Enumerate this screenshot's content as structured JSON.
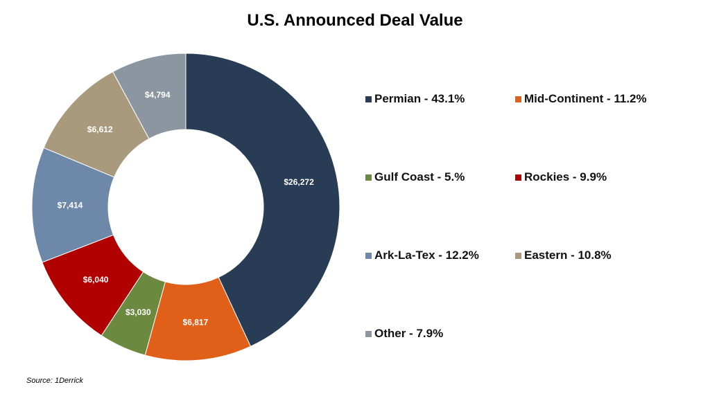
{
  "chart_data": {
    "type": "pie",
    "subtype": "donut",
    "title": "U.S. Announced Deal Value",
    "categories": [
      "Permian",
      "Mid-Continent",
      "Gulf Coast",
      "Rockies",
      "Ark-La-Tex",
      "Eastern",
      "Other"
    ],
    "values": [
      26272,
      6817,
      3030,
      6040,
      7414,
      6612,
      4794
    ],
    "data_labels": [
      "$26,272",
      "$6,817",
      "$3,030",
      "$6,040",
      "$7,414",
      "$6,612",
      "$4,794"
    ],
    "legend_entries": [
      "Permian - 43.1%",
      "Mid-Continent - 11.2%",
      "Gulf Coast - 5.%",
      "Rockies - 9.9%",
      "Ark-La-Tex - 12.2%",
      "Eastern - 10.8%",
      "Other - 7.9%"
    ],
    "colors": [
      "#283c55",
      "#e0601a",
      "#6b8a3f",
      "#b00000",
      "#6e88aa",
      "#a99a7e",
      "#8c96a1"
    ],
    "legend_position": "right",
    "start_angle": "top, clockwise"
  },
  "source": "Source: 1Derrick"
}
